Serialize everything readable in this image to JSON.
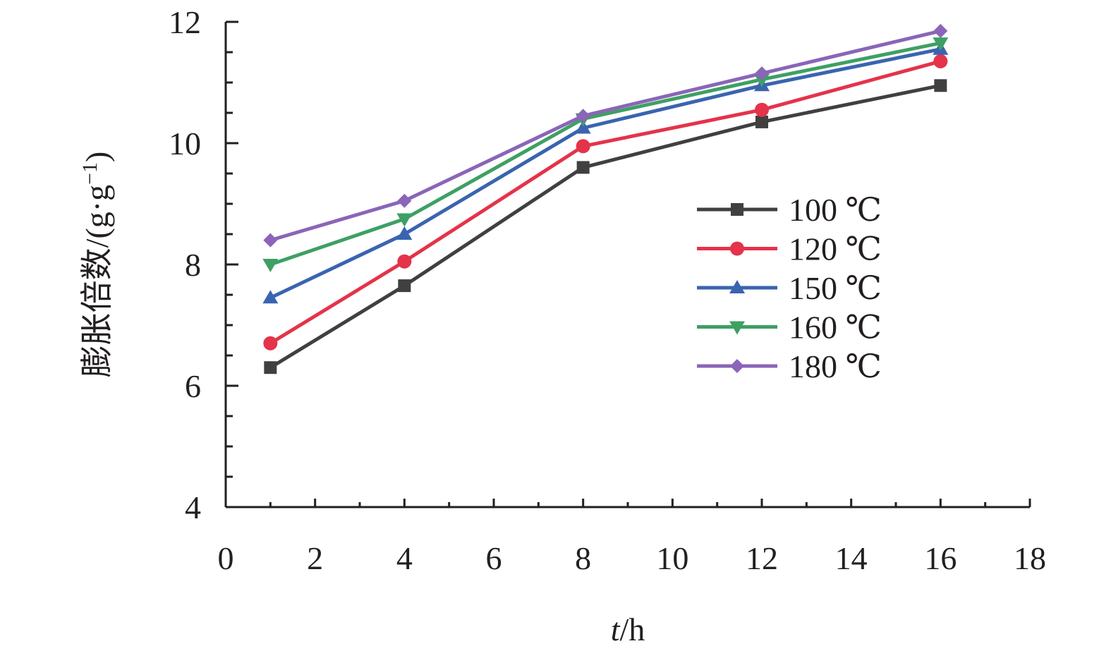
{
  "chart_data": {
    "type": "line",
    "xlabel_italic": "t",
    "xlabel_unit": "/h",
    "ylabel": "膨胀倍数/(g·g",
    "ylabel_sup": "−1",
    "ylabel_close": ")",
    "xlim": [
      0,
      18
    ],
    "ylim": [
      4,
      12
    ],
    "xticks": [
      0,
      2,
      4,
      6,
      8,
      10,
      12,
      14,
      16,
      18
    ],
    "yticks": [
      4,
      6,
      8,
      10,
      12
    ],
    "grid": false,
    "legend_position": "right",
    "x": [
      1,
      4,
      8,
      12,
      16
    ],
    "series": [
      {
        "name": "100 ℃",
        "color": "#404040",
        "marker": "square",
        "values": [
          6.3,
          7.65,
          9.6,
          10.35,
          10.95
        ]
      },
      {
        "name": "120 ℃",
        "color": "#e4334a",
        "marker": "circle",
        "values": [
          6.7,
          8.05,
          9.95,
          10.55,
          11.35
        ]
      },
      {
        "name": "150 ℃",
        "color": "#3a64b0",
        "marker": "triangle-up",
        "values": [
          7.45,
          8.5,
          10.25,
          10.95,
          11.55
        ]
      },
      {
        "name": "160 ℃",
        "color": "#3ea063",
        "marker": "triangle-down",
        "values": [
          8.0,
          8.75,
          10.4,
          11.05,
          11.65
        ]
      },
      {
        "name": "180 ℃",
        "color": "#8a65b8",
        "marker": "diamond",
        "values": [
          8.4,
          9.05,
          10.45,
          11.15,
          11.85
        ]
      }
    ]
  }
}
